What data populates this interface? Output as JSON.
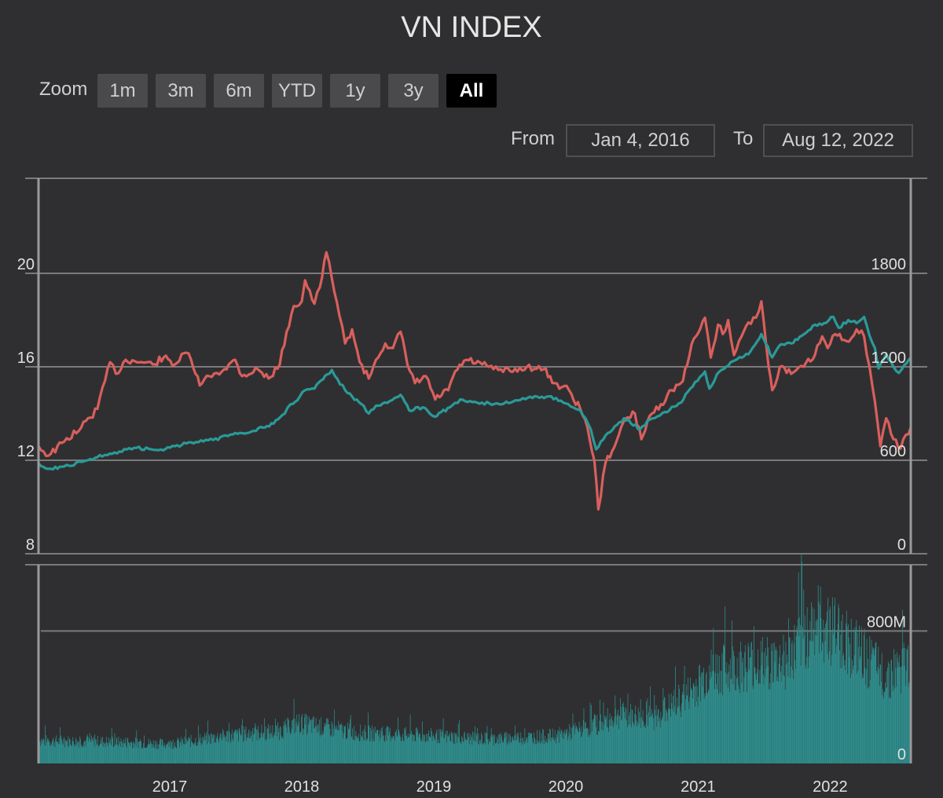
{
  "title": "VN INDEX",
  "zoom": {
    "label": "Zoom",
    "buttons": [
      "1m",
      "3m",
      "6m",
      "YTD",
      "1y",
      "3y",
      "All"
    ],
    "active": "All"
  },
  "range": {
    "from_label": "From",
    "from_value": "Jan 4, 2016",
    "to_label": "To",
    "to_value": "Aug 12, 2022"
  },
  "colors": {
    "background": "#2f2f31",
    "price_line": "#d95f5c",
    "index_line": "#2a9a97",
    "volume": "#2e9190",
    "grid": "#7a7a7c"
  },
  "chart_data": [
    {
      "type": "line",
      "left_axis": {
        "ticks": [
          8,
          12,
          16,
          20
        ],
        "ylim": [
          8,
          24
        ]
      },
      "right_axis": {
        "ticks": [
          0,
          600,
          1200,
          1800
        ],
        "ylim": [
          0,
          2400
        ]
      },
      "xlim": [
        "2016-01-04",
        "2022-08-12"
      ],
      "series": [
        {
          "axis": "left",
          "color": "#d95f5c",
          "points": [
            [
              "2016-01-04",
              12.6
            ],
            [
              "2016-02-01",
              12.2
            ],
            [
              "2016-03-15",
              12.8
            ],
            [
              "2016-05-01",
              13.4
            ],
            [
              "2016-06-15",
              14.2
            ],
            [
              "2016-07-20",
              16.2
            ],
            [
              "2016-08-05",
              15.7
            ],
            [
              "2016-09-01",
              16.3
            ],
            [
              "2016-10-15",
              16.2
            ],
            [
              "2016-11-15",
              16.1
            ],
            [
              "2016-12-15",
              16.4
            ],
            [
              "2017-01-15",
              16.1
            ],
            [
              "2017-02-15",
              16.6
            ],
            [
              "2017-03-01",
              16.3
            ],
            [
              "2017-03-25",
              15.2
            ],
            [
              "2017-04-20",
              15.6
            ],
            [
              "2017-06-01",
              15.9
            ],
            [
              "2017-07-01",
              16.3
            ],
            [
              "2017-07-20",
              15.6
            ],
            [
              "2017-09-01",
              15.9
            ],
            [
              "2017-10-01",
              15.5
            ],
            [
              "2017-11-01",
              16.1
            ],
            [
              "2017-11-20",
              17.5
            ],
            [
              "2017-12-10",
              18.6
            ],
            [
              "2018-01-01",
              18.8
            ],
            [
              "2018-01-10",
              19.7
            ],
            [
              "2018-02-05",
              18.7
            ],
            [
              "2018-02-20",
              19.4
            ],
            [
              "2018-03-10",
              20.9
            ],
            [
              "2018-03-25",
              19.8
            ],
            [
              "2018-04-15",
              18.2
            ],
            [
              "2018-05-01",
              17.0
            ],
            [
              "2018-05-20",
              17.6
            ],
            [
              "2018-06-10",
              16.2
            ],
            [
              "2018-07-05",
              15.5
            ],
            [
              "2018-07-25",
              16.3
            ],
            [
              "2018-08-20",
              17.0
            ],
            [
              "2018-09-10",
              16.8
            ],
            [
              "2018-10-01",
              17.5
            ],
            [
              "2018-10-20",
              16.1
            ],
            [
              "2018-11-10",
              15.3
            ],
            [
              "2018-12-10",
              15.6
            ],
            [
              "2019-01-05",
              14.6
            ],
            [
              "2019-02-10",
              15.0
            ],
            [
              "2019-03-01",
              15.8
            ],
            [
              "2019-04-01",
              16.3
            ],
            [
              "2019-05-15",
              16.1
            ],
            [
              "2019-06-15",
              15.9
            ],
            [
              "2019-08-01",
              15.8
            ],
            [
              "2019-09-15",
              16.0
            ],
            [
              "2019-11-01",
              15.9
            ],
            [
              "2019-12-01",
              15.3
            ],
            [
              "2020-01-10",
              15.0
            ],
            [
              "2020-02-10",
              14.2
            ],
            [
              "2020-03-01",
              13.4
            ],
            [
              "2020-03-20",
              12.0
            ],
            [
              "2020-03-31",
              9.9
            ],
            [
              "2020-04-20",
              11.9
            ],
            [
              "2020-05-20",
              12.8
            ],
            [
              "2020-06-15",
              13.8
            ],
            [
              "2020-07-10",
              14.0
            ],
            [
              "2020-07-28",
              12.9
            ],
            [
              "2020-08-20",
              13.9
            ],
            [
              "2020-09-20",
              14.4
            ],
            [
              "2020-10-20",
              15.0
            ],
            [
              "2020-11-20",
              15.4
            ],
            [
              "2020-12-20",
              17.2
            ],
            [
              "2021-01-20",
              18.1
            ],
            [
              "2021-02-05",
              16.4
            ],
            [
              "2021-02-25",
              17.8
            ],
            [
              "2021-03-10",
              17.4
            ],
            [
              "2021-03-25",
              18.0
            ],
            [
              "2021-04-10",
              16.5
            ],
            [
              "2021-05-01",
              17.3
            ],
            [
              "2021-05-20",
              17.9
            ],
            [
              "2021-06-10",
              18.1
            ],
            [
              "2021-06-25",
              18.8
            ],
            [
              "2021-07-15",
              16.0
            ],
            [
              "2021-07-25",
              15.0
            ],
            [
              "2021-08-15",
              16.0
            ],
            [
              "2021-09-15",
              15.7
            ],
            [
              "2021-10-20",
              16.0
            ],
            [
              "2021-11-20",
              16.5
            ],
            [
              "2021-12-10",
              17.3
            ],
            [
              "2021-12-25",
              16.8
            ],
            [
              "2022-01-15",
              17.4
            ],
            [
              "2022-02-15",
              17.1
            ],
            [
              "2022-03-15",
              17.6
            ],
            [
              "2022-04-05",
              17.3
            ],
            [
              "2022-04-20",
              16.0
            ],
            [
              "2022-05-05",
              14.5
            ],
            [
              "2022-05-20",
              12.6
            ],
            [
              "2022-06-05",
              13.8
            ],
            [
              "2022-06-25",
              12.9
            ],
            [
              "2022-07-15",
              12.5
            ],
            [
              "2022-07-30",
              13.1
            ],
            [
              "2022-08-12",
              13.4
            ]
          ]
        },
        {
          "axis": "right",
          "color": "#2a9a97",
          "points": [
            [
              "2016-01-04",
              580
            ],
            [
              "2016-02-01",
              545
            ],
            [
              "2016-03-15",
              560
            ],
            [
              "2016-05-01",
              590
            ],
            [
              "2016-06-15",
              620
            ],
            [
              "2016-08-01",
              650
            ],
            [
              "2016-10-01",
              680
            ],
            [
              "2016-12-01",
              665
            ],
            [
              "2017-01-15",
              690
            ],
            [
              "2017-03-01",
              715
            ],
            [
              "2017-05-01",
              730
            ],
            [
              "2017-07-01",
              775
            ],
            [
              "2017-08-15",
              785
            ],
            [
              "2017-09-15",
              810
            ],
            [
              "2017-10-15",
              835
            ],
            [
              "2017-11-15",
              900
            ],
            [
              "2017-12-01",
              960
            ],
            [
              "2017-12-20",
              985
            ],
            [
              "2018-01-10",
              1050
            ],
            [
              "2018-02-05",
              1060
            ],
            [
              "2018-03-01",
              1120
            ],
            [
              "2018-03-25",
              1180
            ],
            [
              "2018-04-10",
              1120
            ],
            [
              "2018-05-01",
              1050
            ],
            [
              "2018-05-20",
              1010
            ],
            [
              "2018-06-15",
              960
            ],
            [
              "2018-07-05",
              900
            ],
            [
              "2018-07-25",
              950
            ],
            [
              "2018-09-01",
              980
            ],
            [
              "2018-10-01",
              1020
            ],
            [
              "2018-10-25",
              920
            ],
            [
              "2018-12-01",
              940
            ],
            [
              "2019-01-03",
              880
            ],
            [
              "2019-02-15",
              940
            ],
            [
              "2019-03-15",
              990
            ],
            [
              "2019-05-01",
              970
            ],
            [
              "2019-07-01",
              960
            ],
            [
              "2019-08-15",
              985
            ],
            [
              "2019-10-01",
              1000
            ],
            [
              "2019-11-15",
              1010
            ],
            [
              "2020-01-01",
              965
            ],
            [
              "2020-02-10",
              920
            ],
            [
              "2020-03-10",
              800
            ],
            [
              "2020-03-25",
              670
            ],
            [
              "2020-04-20",
              760
            ],
            [
              "2020-06-10",
              870
            ],
            [
              "2020-07-25",
              800
            ],
            [
              "2020-08-20",
              860
            ],
            [
              "2020-10-01",
              910
            ],
            [
              "2020-11-15",
              970
            ],
            [
              "2020-12-10",
              1060
            ],
            [
              "2021-01-20",
              1170
            ],
            [
              "2021-02-01",
              1060
            ],
            [
              "2021-03-01",
              1170
            ],
            [
              "2021-04-01",
              1230
            ],
            [
              "2021-05-20",
              1280
            ],
            [
              "2021-06-25",
              1410
            ],
            [
              "2021-07-25",
              1260
            ],
            [
              "2021-08-15",
              1340
            ],
            [
              "2021-09-15",
              1350
            ],
            [
              "2021-10-15",
              1400
            ],
            [
              "2021-11-20",
              1470
            ],
            [
              "2021-12-15",
              1480
            ],
            [
              "2022-01-10",
              1520
            ],
            [
              "2022-01-25",
              1450
            ],
            [
              "2022-02-20",
              1500
            ],
            [
              "2022-03-15",
              1480
            ],
            [
              "2022-04-05",
              1520
            ],
            [
              "2022-04-20",
              1400
            ],
            [
              "2022-05-05",
              1320
            ],
            [
              "2022-05-15",
              1190
            ],
            [
              "2022-06-05",
              1280
            ],
            [
              "2022-06-25",
              1200
            ],
            [
              "2022-07-10",
              1160
            ],
            [
              "2022-07-25",
              1210
            ],
            [
              "2022-08-12",
              1260
            ]
          ]
        }
      ],
      "x_ticks": [
        "2017",
        "2018",
        "2019",
        "2020",
        "2021",
        "2022"
      ]
    },
    {
      "type": "bar",
      "unit": "shares",
      "ylim": [
        0,
        1200000000
      ],
      "y_ticks": [
        {
          "value": 0,
          "label": "0"
        },
        {
          "value": 800000000,
          "label": "800M"
        }
      ],
      "color": "#2e9190",
      "volume_trend": [
        [
          "2016-01-04",
          140000000
        ],
        [
          "2016-07-01",
          135000000
        ],
        [
          "2017-01-01",
          120000000
        ],
        [
          "2017-06-01",
          170000000
        ],
        [
          "2017-11-01",
          200000000
        ],
        [
          "2017-12-20",
          250000000
        ],
        [
          "2018-06-01",
          190000000
        ],
        [
          "2019-01-01",
          170000000
        ],
        [
          "2019-06-01",
          150000000
        ],
        [
          "2019-12-01",
          170000000
        ],
        [
          "2020-03-01",
          220000000
        ],
        [
          "2020-06-01",
          300000000
        ],
        [
          "2020-09-01",
          280000000
        ],
        [
          "2020-12-01",
          420000000
        ],
        [
          "2021-02-01",
          560000000
        ],
        [
          "2021-06-01",
          620000000
        ],
        [
          "2021-09-01",
          620000000
        ],
        [
          "2021-11-20",
          880000000
        ],
        [
          "2022-01-15",
          820000000
        ],
        [
          "2022-04-01",
          660000000
        ],
        [
          "2022-06-01",
          540000000
        ],
        [
          "2022-08-12",
          620000000
        ]
      ]
    }
  ]
}
